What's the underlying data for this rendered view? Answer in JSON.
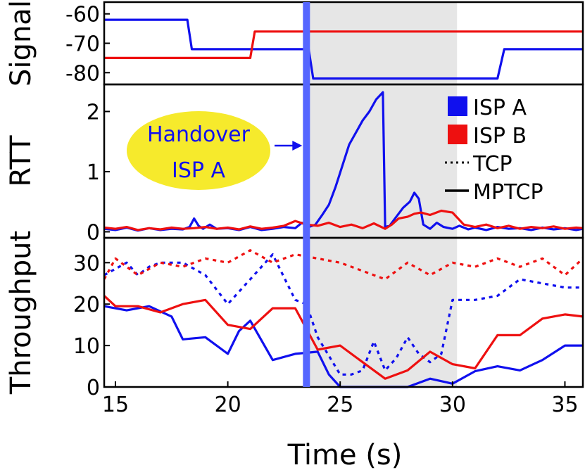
{
  "chart_data": {
    "type": "line",
    "xlabel": "Time (s)",
    "xlim": [
      14.5,
      35.8
    ],
    "xticks": [
      15,
      20,
      25,
      30,
      35
    ],
    "colors": {
      "isp_a": "#1010ee",
      "isp_b": "#ee1010",
      "shade": "#e6e6e6",
      "handover_line": "#5566ff",
      "bubble": "#f6ea2c"
    },
    "shaded_region": [
      23.5,
      30.2
    ],
    "handover_time": 23.5,
    "legend": {
      "placement": "top-right",
      "entries": [
        {
          "label": "ISP A",
          "kind": "color",
          "color": "#1010ee"
        },
        {
          "label": "ISP B",
          "kind": "color",
          "color": "#ee1010"
        },
        {
          "label": "TCP",
          "kind": "dotted"
        },
        {
          "label": "MPTCP",
          "kind": "solid"
        }
      ]
    },
    "annotation": {
      "lines": [
        "Handover",
        "ISP A"
      ],
      "points_to": [
        23.5,
        1.1
      ],
      "panel": "rtt"
    },
    "panels": [
      {
        "id": "signal",
        "ylabel": "Signal",
        "ylim": [
          -84,
          -56
        ],
        "yticks": [
          -60,
          -70,
          -80
        ],
        "ytick_labels": [
          "-60",
          "-70",
          "-80"
        ],
        "series": [
          {
            "id": "sig-a",
            "color": "isp_a",
            "style": "solid",
            "x": [
              14.5,
              18.2,
              18.4,
              23.6,
              23.8,
              32.0,
              32.3,
              35.8
            ],
            "y": [
              -62,
              -62,
              -72,
              -72,
              -82,
              -82,
              -72,
              -72
            ]
          },
          {
            "id": "sig-b",
            "color": "isp_b",
            "style": "solid",
            "x": [
              14.5,
              21.0,
              21.2,
              35.8
            ],
            "y": [
              -75,
              -75,
              -66,
              -66
            ]
          }
        ]
      },
      {
        "id": "rtt",
        "ylabel": "RTT",
        "ylim": [
          -0.1,
          2.45
        ],
        "yticks": [
          0,
          1,
          2
        ],
        "ytick_labels": [
          "0",
          "1",
          "2"
        ],
        "series": [
          {
            "id": "rtt-a",
            "color": "isp_a",
            "style": "solid",
            "x": [
              14.5,
              15.0,
              15.5,
              16.0,
              16.5,
              17.0,
              17.5,
              18.0,
              18.3,
              18.5,
              18.7,
              18.9,
              19.2,
              19.5,
              20.0,
              20.5,
              21.0,
              21.5,
              22.0,
              22.5,
              23.0,
              23.3,
              23.6,
              23.9,
              24.2,
              24.5,
              24.8,
              25.1,
              25.4,
              25.7,
              26.0,
              26.3,
              26.6,
              26.9,
              27.0,
              27.2,
              27.5,
              27.8,
              28.1,
              28.3,
              28.5,
              28.7,
              29.0,
              29.3,
              29.6,
              30.0,
              30.3,
              30.7,
              31.0,
              31.5,
              32.0,
              32.5,
              33.0,
              33.5,
              34.0,
              34.5,
              35.0,
              35.5,
              35.8
            ],
            "y": [
              0.05,
              0.03,
              0.07,
              0.02,
              0.06,
              0.03,
              0.05,
              0.04,
              0.08,
              0.22,
              0.1,
              0.05,
              0.12,
              0.05,
              0.06,
              0.03,
              0.08,
              0.03,
              0.05,
              0.08,
              0.06,
              0.15,
              0.08,
              0.12,
              0.28,
              0.45,
              0.75,
              1.1,
              1.45,
              1.65,
              1.85,
              2.0,
              2.2,
              2.32,
              0.08,
              0.1,
              0.25,
              0.4,
              0.5,
              0.65,
              0.55,
              0.12,
              0.05,
              0.15,
              0.08,
              0.05,
              0.1,
              0.04,
              0.07,
              0.03,
              0.08,
              0.05,
              0.06,
              0.03,
              0.07,
              0.04,
              0.06,
              0.03,
              0.05
            ]
          },
          {
            "id": "rtt-b",
            "color": "isp_b",
            "style": "solid",
            "x": [
              14.5,
              15.0,
              15.5,
              16.0,
              16.5,
              17.0,
              17.5,
              18.0,
              18.5,
              19.0,
              19.5,
              20.0,
              20.5,
              21.0,
              21.5,
              22.0,
              22.5,
              23.0,
              23.5,
              24.0,
              24.5,
              25.0,
              25.5,
              26.0,
              26.5,
              27.0,
              27.3,
              27.6,
              28.0,
              28.3,
              28.6,
              29.0,
              29.5,
              30.0,
              30.5,
              31.0,
              31.5,
              32.0,
              32.5,
              33.0,
              33.5,
              34.0,
              34.5,
              35.0,
              35.5,
              35.8
            ],
            "y": [
              0.07,
              0.05,
              0.08,
              0.03,
              0.06,
              0.04,
              0.07,
              0.05,
              0.06,
              0.08,
              0.05,
              0.07,
              0.04,
              0.09,
              0.05,
              0.07,
              0.1,
              0.18,
              0.12,
              0.1,
              0.15,
              0.08,
              0.12,
              0.06,
              0.14,
              0.05,
              0.12,
              0.22,
              0.25,
              0.3,
              0.32,
              0.28,
              0.35,
              0.32,
              0.12,
              0.08,
              0.12,
              0.06,
              0.1,
              0.05,
              0.08,
              0.06,
              0.09,
              0.05,
              0.07,
              0.06
            ]
          }
        ]
      },
      {
        "id": "throughput",
        "ylabel": "Throughput",
        "ylim": [
          0,
          36
        ],
        "yticks": [
          0,
          10,
          20,
          30
        ],
        "ytick_labels": [
          "0",
          "10",
          "20",
          "30"
        ],
        "series": [
          {
            "id": "tp-a-tcp",
            "color": "isp_a",
            "style": "dotted",
            "x": [
              14.5,
              15.5,
              16.0,
              16.5,
              17.0,
              18.0,
              19.0,
              20.0,
              21.0,
              22.0,
              23.0,
              23.5,
              24.0,
              25.0,
              25.5,
              26.0,
              26.5,
              27.0,
              27.5,
              28.0,
              28.5,
              29.0,
              29.5,
              30.0,
              31.0,
              32.0,
              33.0,
              34.0,
              35.0,
              35.8
            ],
            "y": [
              27,
              30,
              27,
              29,
              30,
              30,
              27,
              20,
              26,
              32,
              21,
              20,
              12,
              3,
              3,
              4,
              11,
              4,
              7,
              12,
              8,
              6,
              8,
              21,
              21,
              22,
              26,
              25,
              24,
              24
            ]
          },
          {
            "id": "tp-b-tcp",
            "color": "isp_b",
            "style": "dotted",
            "x": [
              14.5,
              15.0,
              16.0,
              17.0,
              18.0,
              19.0,
              20.0,
              21.0,
              22.0,
              23.0,
              24.0,
              25.0,
              26.0,
              27.0,
              28.0,
              29.0,
              30.0,
              31.0,
              32.0,
              33.0,
              34.0,
              35.0,
              35.8
            ],
            "y": [
              26,
              31,
              27,
              30,
              29,
              31,
              30,
              33,
              30,
              32,
              31,
              30,
              28,
              26,
              30,
              27,
              30,
              29,
              31,
              29,
              31,
              27,
              31
            ]
          },
          {
            "id": "tp-a-mptcp",
            "color": "isp_a",
            "style": "solid",
            "x": [
              14.5,
              15.5,
              16.5,
              17.5,
              18.0,
              19.0,
              20.0,
              20.5,
              21.0,
              22.0,
              23.0,
              24.0,
              24.5,
              25.0,
              26.0,
              27.0,
              28.0,
              29.0,
              30.0,
              31.0,
              32.0,
              33.0,
              34.0,
              35.0,
              35.8
            ],
            "y": [
              19.5,
              18.5,
              19.5,
              17,
              11.5,
              12,
              8,
              13.5,
              16,
              6.5,
              8,
              8.5,
              3,
              0,
              0,
              0,
              0,
              2,
              0.8,
              3.8,
              5,
              4,
              6.5,
              10,
              10
            ]
          },
          {
            "id": "tp-b-mptcp",
            "color": "isp_b",
            "style": "solid",
            "x": [
              14.5,
              15.0,
              16.0,
              17.0,
              18.0,
              19.0,
              20.0,
              21.0,
              22.0,
              23.0,
              24.0,
              25.0,
              26.0,
              27.0,
              28.0,
              29.0,
              30.0,
              31.0,
              32.0,
              33.0,
              34.0,
              35.0,
              35.8
            ],
            "y": [
              22,
              19.5,
              19.5,
              18,
              20,
              21,
              15,
              14,
              19,
              19,
              9,
              10,
              6,
              2,
              4,
              8.5,
              5.5,
              4.5,
              12.5,
              12.5,
              16.5,
              17.5,
              17
            ]
          }
        ]
      }
    ]
  }
}
